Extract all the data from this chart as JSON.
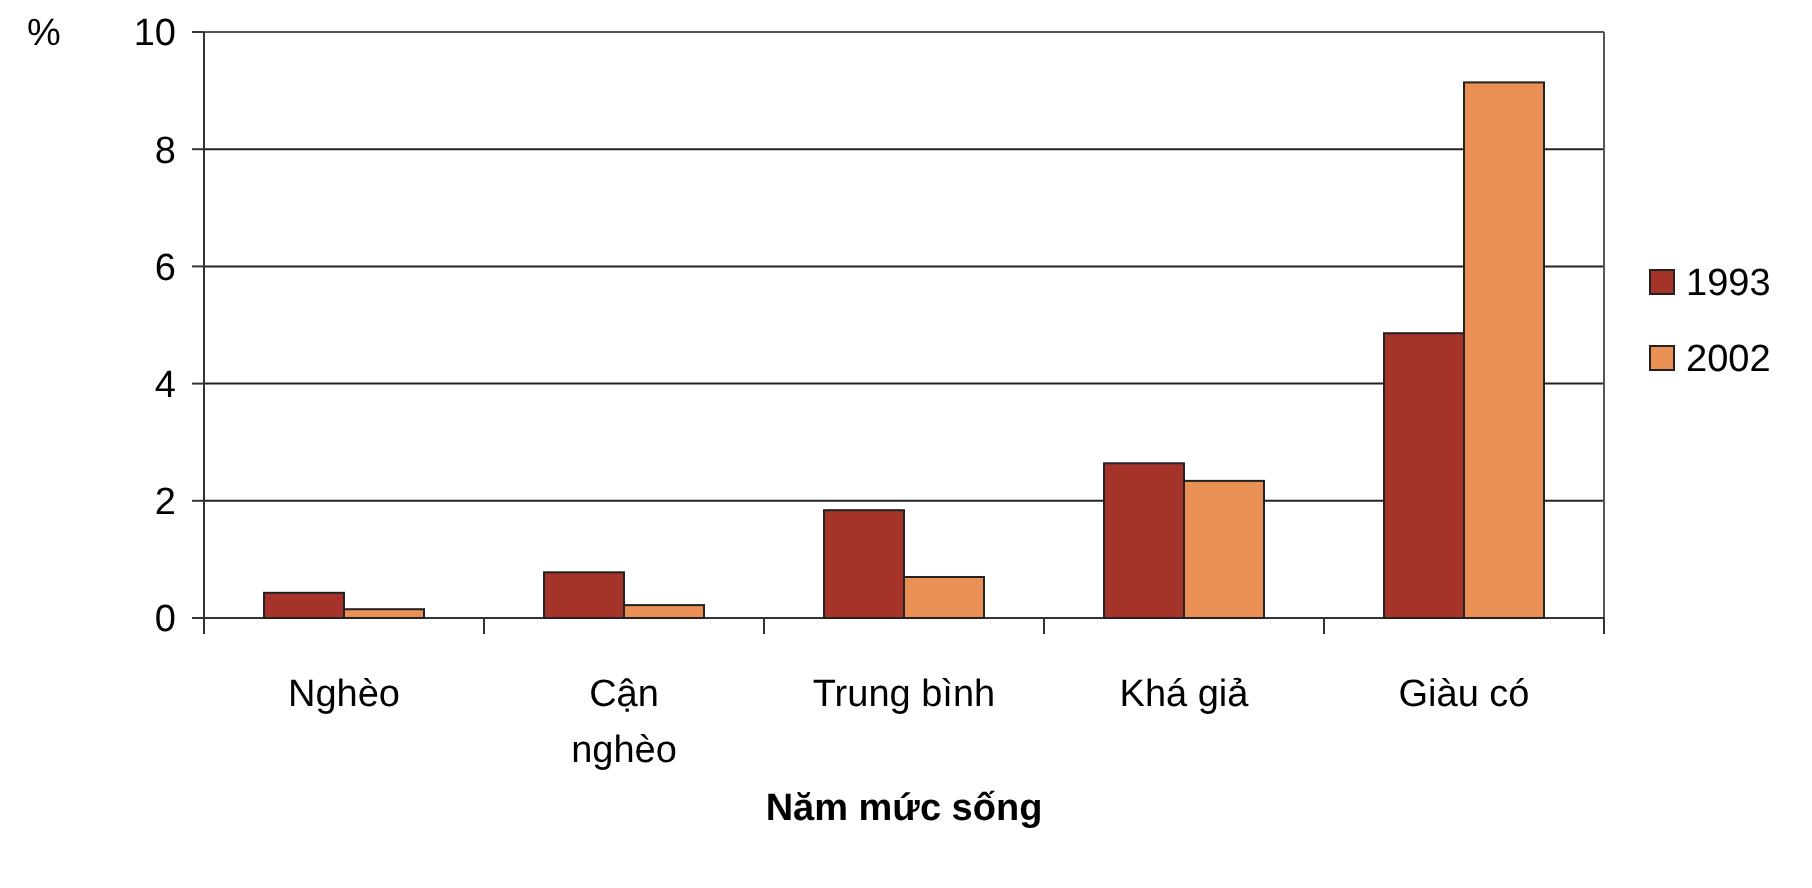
{
  "chart_data": {
    "type": "bar",
    "ylabel": "%",
    "xlabel": "Năm mức sống",
    "categories": [
      "Nghèo",
      "Cận\nnghèo",
      "Trung bình",
      "Khá giả",
      "Giàu có"
    ],
    "series": [
      {
        "name": "1993",
        "color": "#a5332a",
        "values": [
          0.43,
          0.78,
          1.84,
          2.64,
          4.86
        ]
      },
      {
        "name": "2002",
        "color": "#eb9055",
        "values": [
          0.15,
          0.22,
          0.7,
          2.34,
          9.14
        ]
      }
    ],
    "ylim": [
      0,
      10
    ],
    "yticks": [
      0,
      2,
      4,
      6,
      8,
      10
    ],
    "grid": "y",
    "legend": "right"
  }
}
